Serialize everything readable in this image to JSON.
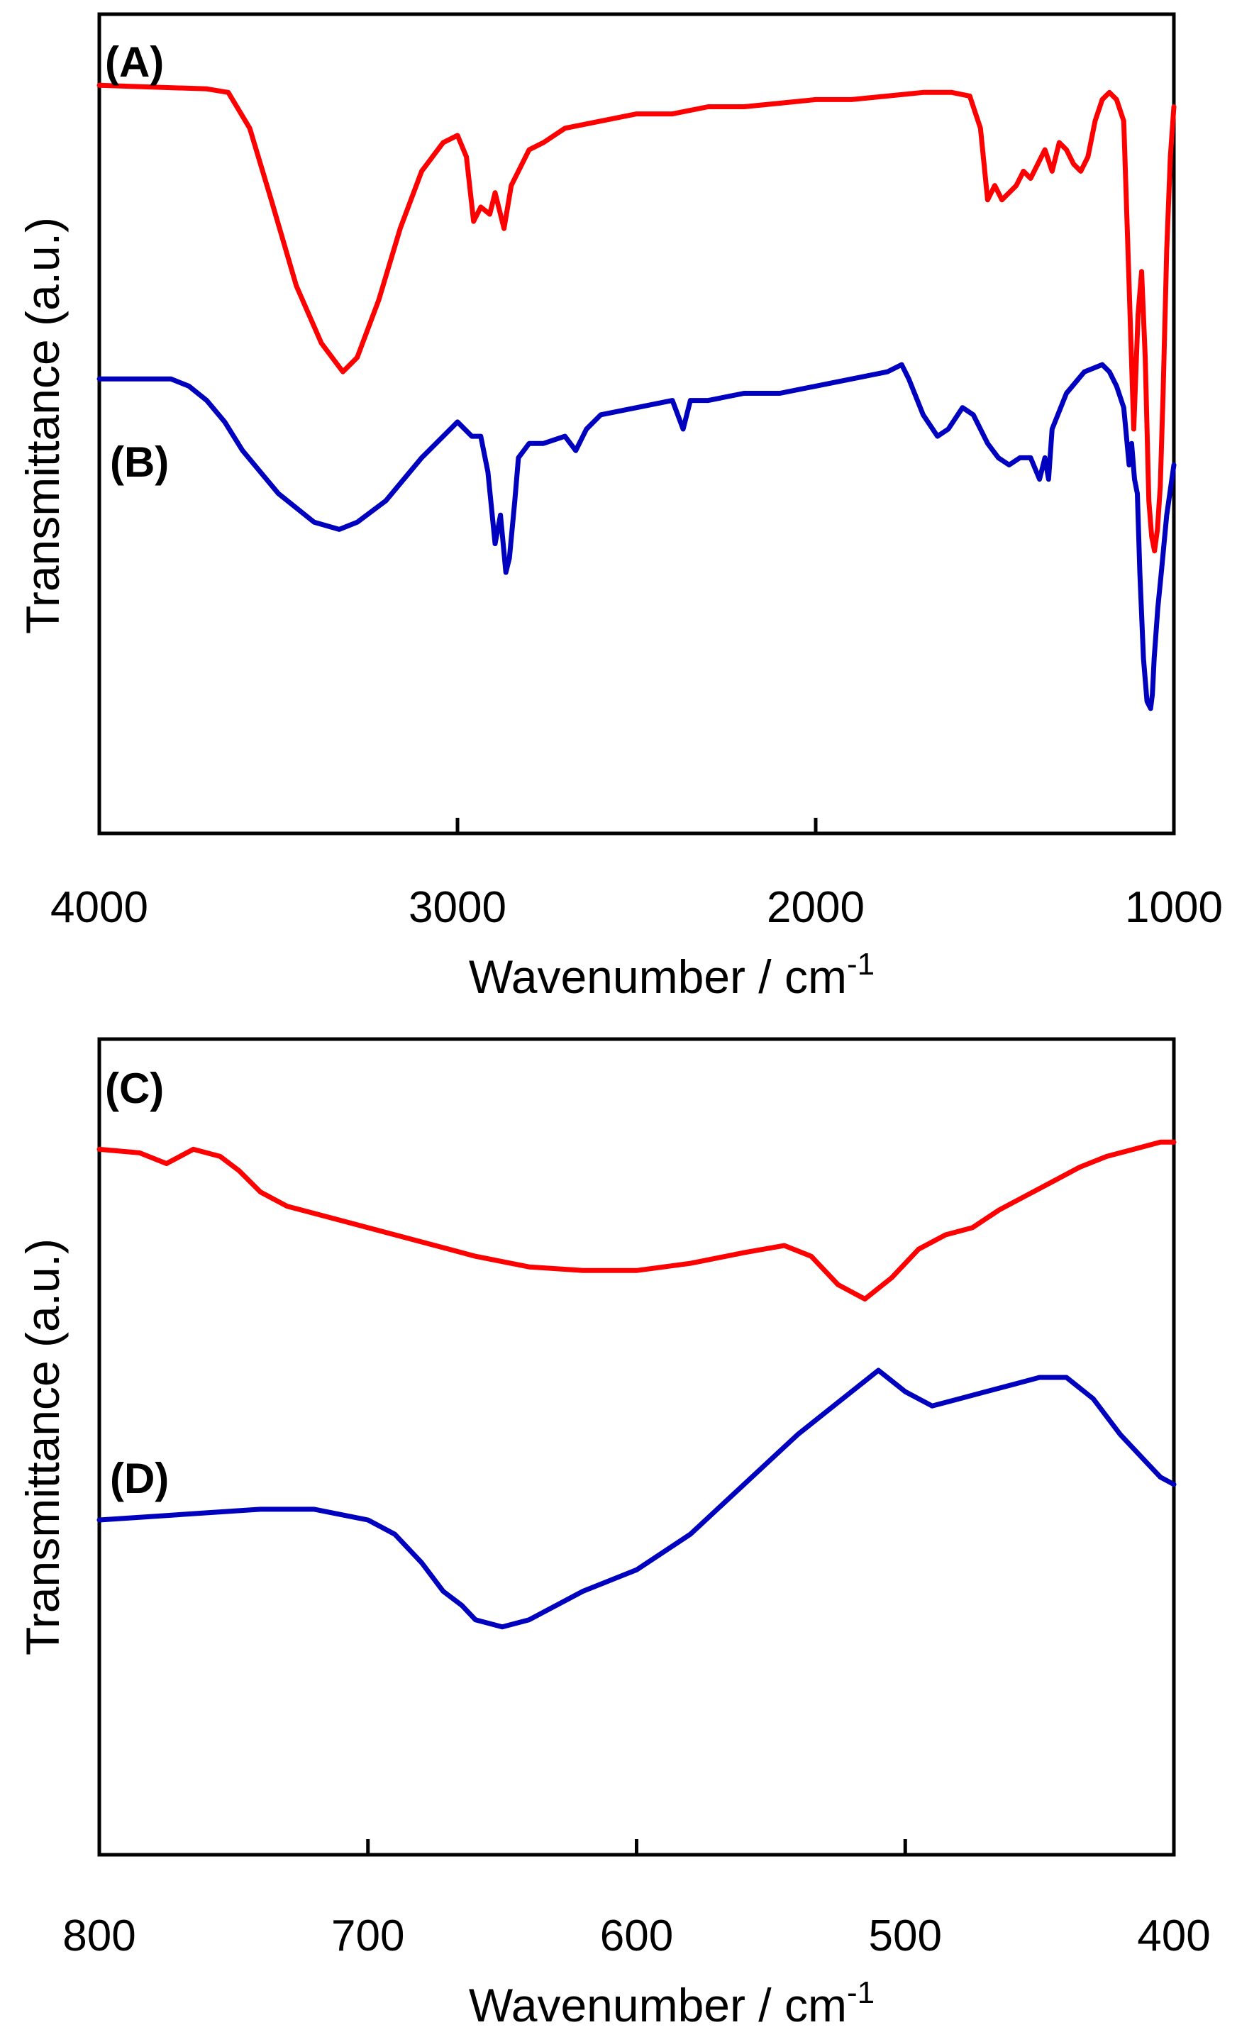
{
  "chart_data": [
    {
      "type": "line",
      "xlabel": "Wavenumber / cm",
      "xlabel_superscript": "-1",
      "ylabel": "Transmittance (a.u.)",
      "xlim": [
        4000,
        1000
      ],
      "xticks": [
        "4000",
        "3000",
        "2000",
        "1000"
      ],
      "ylim": [
        0,
        100
      ],
      "grid": false,
      "series": [
        {
          "name": "(A)",
          "color": "#ff0000",
          "x": [
            4000,
            3700,
            3640,
            3580,
            3520,
            3450,
            3380,
            3320,
            3280,
            3220,
            3160,
            3100,
            3040,
            3000,
            2975,
            2955,
            2935,
            2910,
            2895,
            2870,
            2850,
            2800,
            2760,
            2700,
            2600,
            2500,
            2400,
            2300,
            2200,
            2100,
            2000,
            1900,
            1800,
            1700,
            1620,
            1570,
            1540,
            1520,
            1500,
            1480,
            1460,
            1440,
            1420,
            1400,
            1380,
            1360,
            1340,
            1320,
            1300,
            1280,
            1260,
            1240,
            1220,
            1200,
            1180,
            1160,
            1140,
            1125,
            1112,
            1100,
            1090,
            1080,
            1070,
            1062,
            1054,
            1046,
            1038,
            1030,
            1020,
            1010,
            1000
          ],
          "y": [
            98,
            97.5,
            97,
            92,
            82,
            70,
            62,
            58,
            60,
            68,
            78,
            86,
            90,
            91,
            88,
            79,
            81,
            80,
            83,
            78,
            84,
            89,
            90,
            92,
            93,
            94,
            94,
            95,
            95,
            95.5,
            96,
            96,
            96.5,
            97,
            97,
            96.5,
            92,
            82,
            84,
            82,
            83,
            84,
            86,
            85,
            87,
            89,
            86,
            90,
            89,
            87,
            86,
            88,
            93,
            96,
            97,
            96,
            93,
            70,
            50,
            66,
            72,
            60,
            40,
            35,
            33,
            36,
            42,
            55,
            75,
            88,
            95
          ]
        },
        {
          "name": "(B)",
          "color": "#0000bf",
          "x": [
            4000,
            3900,
            3800,
            3750,
            3700,
            3650,
            3600,
            3500,
            3400,
            3330,
            3280,
            3200,
            3100,
            3000,
            2960,
            2935,
            2915,
            2895,
            2880,
            2865,
            2855,
            2840,
            2830,
            2800,
            2760,
            2700,
            2670,
            2640,
            2600,
            2500,
            2400,
            2370,
            2350,
            2300,
            2200,
            2100,
            2000,
            1900,
            1800,
            1760,
            1740,
            1700,
            1660,
            1630,
            1590,
            1560,
            1520,
            1490,
            1460,
            1430,
            1400,
            1375,
            1360,
            1350,
            1340,
            1300,
            1250,
            1200,
            1180,
            1160,
            1140,
            1125,
            1118,
            1110,
            1102,
            1095,
            1085,
            1075,
            1065,
            1060,
            1055,
            1045,
            1035,
            1020,
            1000
          ],
          "y": [
            57,
            57,
            57,
            56,
            54,
            51,
            47,
            41,
            37,
            36,
            37,
            40,
            46,
            51,
            49,
            49,
            44,
            34,
            38,
            30,
            32,
            40,
            46,
            48,
            48,
            49,
            47,
            50,
            52,
            53,
            54,
            50,
            54,
            54,
            55,
            55,
            56,
            57,
            58,
            59,
            57,
            52,
            49,
            50,
            53,
            52,
            48,
            46,
            45,
            46,
            46,
            43,
            46,
            43,
            50,
            55,
            58,
            59,
            58,
            56,
            53,
            45,
            48,
            43,
            41,
            30,
            18,
            12,
            11,
            13,
            18,
            25,
            30,
            38,
            45
          ]
        }
      ]
    },
    {
      "type": "line",
      "xlabel": "Wavenumber / cm",
      "xlabel_superscript": "-1",
      "ylabel": "Transmittance (a.u.)",
      "xlim": [
        800,
        400
      ],
      "xticks": [
        "800",
        "700",
        "600",
        "500",
        "400"
      ],
      "ylim": [
        0,
        100
      ],
      "grid": false,
      "series": [
        {
          "name": "(C)",
          "color": "#ff0000",
          "x": [
            800,
            785,
            775,
            765,
            755,
            748,
            740,
            730,
            720,
            700,
            680,
            660,
            640,
            620,
            600,
            580,
            560,
            545,
            535,
            525,
            515,
            505,
            495,
            485,
            475,
            465,
            455,
            445,
            435,
            425,
            415,
            405,
            400
          ],
          "y": [
            92,
            91.5,
            90,
            92,
            91,
            89,
            86,
            84,
            83,
            81,
            79,
            77,
            75.5,
            75,
            75,
            76,
            77.5,
            78.5,
            77,
            73,
            71,
            74,
            78,
            80,
            81,
            83.5,
            85.5,
            87.5,
            89.5,
            91,
            92,
            93,
            93
          ]
        },
        {
          "name": "(D)",
          "color": "#0000bf",
          "x": [
            800,
            780,
            760,
            740,
            720,
            700,
            690,
            680,
            672,
            665,
            660,
            650,
            640,
            620,
            600,
            580,
            560,
            540,
            520,
            510,
            500,
            490,
            480,
            470,
            460,
            450,
            440,
            430,
            420,
            410,
            405,
            400
          ],
          "y": [
            40,
            40.5,
            41,
            41.5,
            41.5,
            40,
            38,
            34,
            30,
            28,
            26,
            25,
            26,
            30,
            33,
            38,
            45,
            52,
            58,
            61,
            58,
            56,
            57,
            58,
            59,
            60,
            60,
            57,
            52,
            48,
            46,
            45
          ]
        }
      ]
    }
  ]
}
